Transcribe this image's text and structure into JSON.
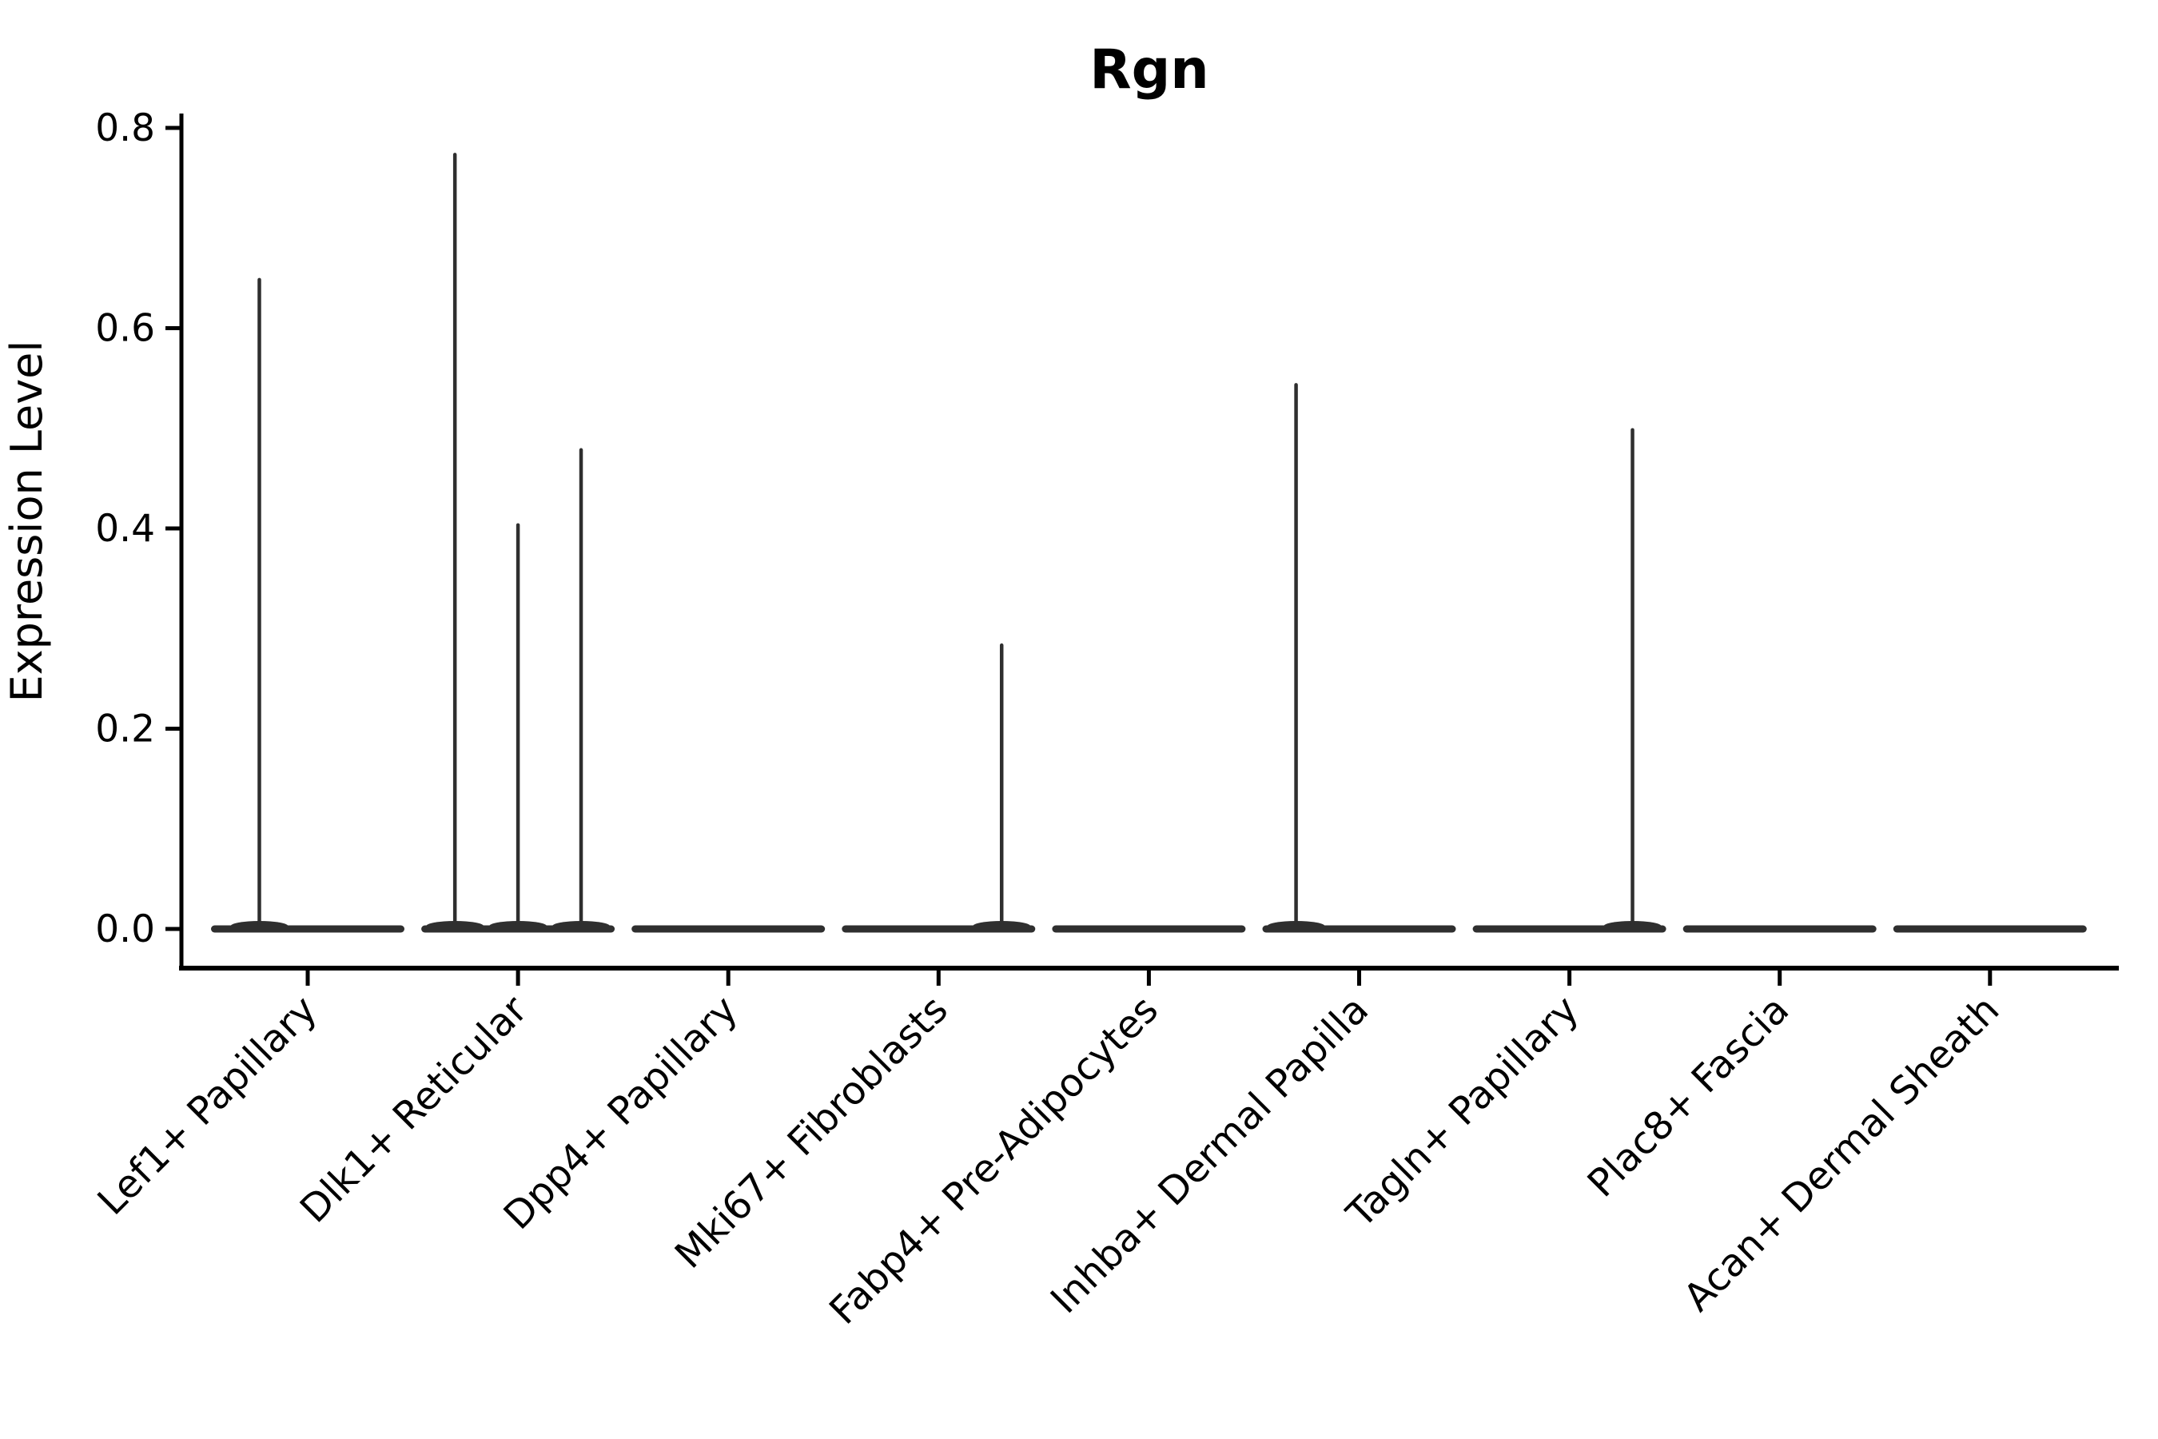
{
  "figure": {
    "background": "#ffffff"
  },
  "chart_data": {
    "type": "violin",
    "title": "Rgn",
    "xlabel": "",
    "ylabel": "Expression Level",
    "ylim": [
      -0.04,
      0.82
    ],
    "yticks": [
      0.0,
      0.2,
      0.4,
      0.6,
      0.8
    ],
    "ytick_labels": [
      "0.0",
      "0.2",
      "0.4",
      "0.6",
      "0.8"
    ],
    "grid": false,
    "legend": "none",
    "axis_color": "#000000",
    "violin_color": "#2f2f2f",
    "categories": [
      "Lef1+ Papillary",
      "Dlk1+ Reticular",
      "Dpp4+ Papillary",
      "Mki67+ Fibroblasts",
      "Fabp4+ Pre-Adipocytes",
      "Inhba+ Dermal Papilla",
      "Tagln+ Papillary",
      "Plac8+ Fascia",
      "Acan+ Dermal Sheath"
    ],
    "violins": [
      {
        "category": "Lef1+ Papillary",
        "baseline_value": 0.0,
        "max_value": 0.65,
        "spikes": [
          {
            "offset_frac": -0.23,
            "value": 0.65
          }
        ]
      },
      {
        "category": "Dlk1+ Reticular",
        "baseline_value": 0.0,
        "max_value": 0.775,
        "spikes": [
          {
            "offset_frac": -0.3,
            "value": 0.775
          },
          {
            "offset_frac": 0.0,
            "value": 0.405
          },
          {
            "offset_frac": 0.3,
            "value": 0.48
          }
        ]
      },
      {
        "category": "Dpp4+ Papillary",
        "baseline_value": 0.0,
        "max_value": 0.0,
        "spikes": []
      },
      {
        "category": "Mki67+ Fibroblasts",
        "baseline_value": 0.0,
        "max_value": 0.285,
        "spikes": [
          {
            "offset_frac": 0.3,
            "value": 0.285
          }
        ]
      },
      {
        "category": "Fabp4+ Pre-Adipocytes",
        "baseline_value": 0.0,
        "max_value": 0.0,
        "spikes": []
      },
      {
        "category": "Inhba+ Dermal Papilla",
        "baseline_value": 0.0,
        "max_value": 0.545,
        "spikes": [
          {
            "offset_frac": -0.3,
            "value": 0.545
          }
        ]
      },
      {
        "category": "Tagln+ Papillary",
        "baseline_value": 0.0,
        "max_value": 0.5,
        "spikes": [
          {
            "offset_frac": 0.3,
            "value": 0.5
          }
        ]
      },
      {
        "category": "Plac8+ Fascia",
        "baseline_value": 0.0,
        "max_value": 0.0,
        "spikes": []
      },
      {
        "category": "Acan+ Dermal Sheath",
        "baseline_value": 0.0,
        "max_value": 0.0,
        "spikes": []
      }
    ]
  }
}
